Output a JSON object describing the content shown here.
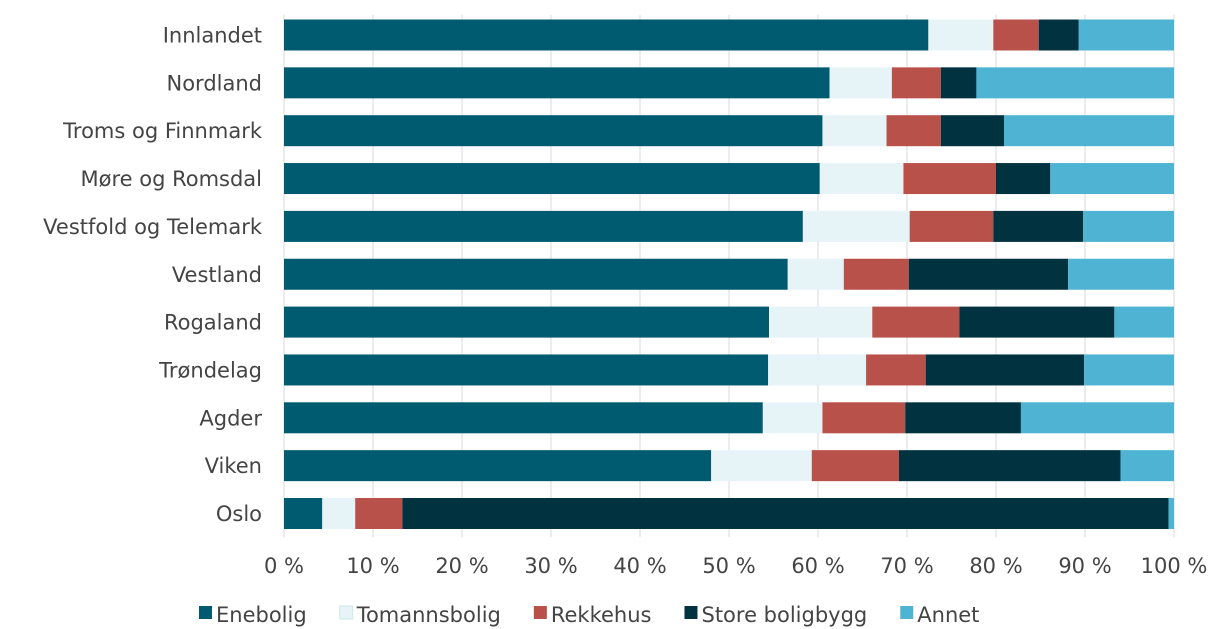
{
  "chart_data": {
    "type": "bar",
    "orientation": "horizontal",
    "stacked": true,
    "categories": [
      "Innlandet",
      "Nordland",
      "Troms og Finnmark",
      "Møre og Romsdal",
      "Vestfold og Telemark",
      "Vestland",
      "Rogaland",
      "Trøndelag",
      "Agder",
      "Viken",
      "Oslo"
    ],
    "series": [
      {
        "name": "Enebolig",
        "color": "#005a70",
        "values": [
          72.4,
          61.3,
          60.5,
          60.2,
          58.3,
          56.6,
          54.5,
          54.4,
          53.8,
          48.0,
          4.3
        ]
      },
      {
        "name": "Tomannsbolig",
        "color": "#e6f4f8",
        "values": [
          7.3,
          7.0,
          7.2,
          9.4,
          12.0,
          6.3,
          11.6,
          11.0,
          6.7,
          11.3,
          3.7
        ]
      },
      {
        "name": "Rekkehus",
        "color": "#b9514b",
        "values": [
          5.1,
          5.5,
          6.1,
          10.4,
          9.4,
          7.3,
          9.8,
          6.7,
          9.3,
          9.8,
          5.3
        ]
      },
      {
        "name": "Store boligbygg",
        "color": "#00323f",
        "values": [
          4.5,
          4.0,
          7.1,
          6.1,
          10.1,
          17.9,
          17.4,
          17.8,
          13.0,
          24.9,
          86.1
        ]
      },
      {
        "name": "Annet",
        "color": "#4fb3d3",
        "values": [
          10.7,
          22.2,
          19.1,
          13.9,
          10.2,
          11.9,
          6.7,
          10.1,
          17.2,
          6.0,
          0.6
        ]
      }
    ],
    "x_ticks": [
      "0 %",
      "10 %",
      "20 %",
      "30 %",
      "40 %",
      "50 %",
      "60 %",
      "70 %",
      "80 %",
      "90 %",
      "100 %"
    ],
    "xlim": [
      0,
      100
    ],
    "grid": true,
    "legend_position": "bottom"
  }
}
